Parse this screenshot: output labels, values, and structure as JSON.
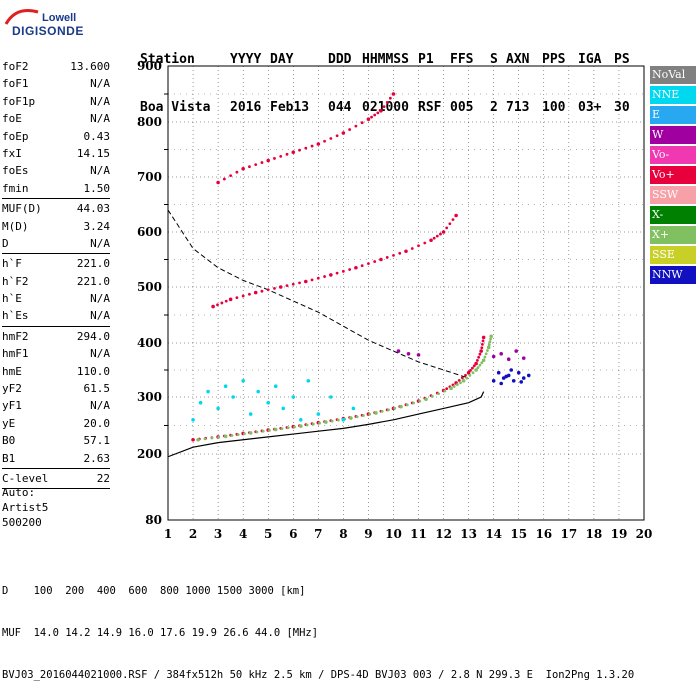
{
  "logo": {
    "line1": "Lowell",
    "line2": "DIGISONDE"
  },
  "header": {
    "labels": [
      "Station",
      "YYYY",
      "DAY",
      "DDD",
      "HHMMSS",
      "P1",
      "FFS",
      "S",
      "AXN",
      "PPS",
      "IGA",
      "PS"
    ],
    "values": [
      "Boa Vista",
      "2016",
      "Feb13",
      "044",
      "021000",
      "RSF",
      "005",
      "2",
      "713",
      "100",
      "03+",
      "30"
    ]
  },
  "params": [
    {
      "k": "foF2",
      "v": "13.600"
    },
    {
      "k": "foF1",
      "v": "N/A"
    },
    {
      "k": "foF1p",
      "v": "N/A"
    },
    {
      "k": "foE",
      "v": "N/A"
    },
    {
      "k": "foEp",
      "v": "0.43"
    },
    {
      "k": "fxI",
      "v": "14.15"
    },
    {
      "k": "foEs",
      "v": "N/A"
    },
    {
      "k": "fmin",
      "v": "1.50"
    },
    {
      "sep": true
    },
    {
      "k": "MUF(D)",
      "v": "44.03"
    },
    {
      "k": "M(D)",
      "v": "3.24"
    },
    {
      "k": "D",
      "v": "N/A"
    },
    {
      "sep": true
    },
    {
      "k": "h`F",
      "v": "221.0"
    },
    {
      "k": "h`F2",
      "v": "221.0"
    },
    {
      "k": "h`E",
      "v": "N/A"
    },
    {
      "k": "h`Es",
      "v": "N/A"
    },
    {
      "sep": true
    },
    {
      "k": "hmF2",
      "v": "294.0"
    },
    {
      "k": "hmF1",
      "v": "N/A"
    },
    {
      "k": "hmE",
      "v": "110.0"
    },
    {
      "k": "yF2",
      "v": "61.5"
    },
    {
      "k": "yF1",
      "v": "N/A"
    },
    {
      "k": "yE",
      "v": "20.0"
    },
    {
      "k": "B0",
      "v": "57.1"
    },
    {
      "k": "B1",
      "v": "2.63"
    },
    {
      "sep": true
    },
    {
      "k": "C-level",
      "v": "22"
    },
    {
      "sep": true
    }
  ],
  "auto": [
    "Auto:",
    "Artist5",
    "500200"
  ],
  "legend": [
    {
      "name": "NoVal",
      "color": "#808080"
    },
    {
      "name": "NNE",
      "color": "#00d8f0"
    },
    {
      "name": "E",
      "color": "#28a8f0"
    },
    {
      "name": "W",
      "color": "#a000a0"
    },
    {
      "name": "Vo-",
      "color": "#f038b0"
    },
    {
      "name": "Vo+",
      "color": "#e8003c"
    },
    {
      "name": "SSW",
      "color": "#f8a0a8"
    },
    {
      "name": "X-",
      "color": "#008000"
    },
    {
      "name": "X+",
      "color": "#80c060"
    },
    {
      "name": "SSE",
      "color": "#c8d028"
    },
    {
      "name": "NNW",
      "color": "#1010c0"
    }
  ],
  "chart_data": {
    "type": "scatter",
    "x_ticks": [
      "1",
      "2",
      "3",
      "4",
      "5",
      "6",
      "7",
      "8",
      "9",
      "10",
      "11",
      "12",
      "13",
      "14",
      "15",
      "16",
      "17",
      "18",
      "19",
      "20"
    ],
    "y_ticks": [
      "80",
      "200",
      "300",
      "400",
      "500",
      "600",
      "700",
      "800",
      "900"
    ],
    "xlim": [
      1,
      20
    ],
    "ylim": [
      80,
      900
    ],
    "grid": true,
    "legend_position": "right",
    "series": [
      {
        "name": "Vo+",
        "color": "#e8003c",
        "points": [
          [
            2.0,
            225
          ],
          [
            3.0,
            230
          ],
          [
            4.0,
            236
          ],
          [
            5.0,
            242
          ],
          [
            6.0,
            248
          ],
          [
            7.0,
            255
          ],
          [
            8.0,
            262
          ],
          [
            9.0,
            270
          ],
          [
            10.0,
            280
          ],
          [
            11.0,
            293
          ],
          [
            12.0,
            312
          ],
          [
            12.5,
            326
          ],
          [
            13.0,
            345
          ],
          [
            13.3,
            362
          ],
          [
            13.5,
            385
          ],
          [
            13.6,
            410
          ]
        ]
      },
      {
        "name": "X+",
        "color": "#80c060",
        "points": [
          [
            2.2,
            225
          ],
          [
            3.3,
            231
          ],
          [
            4.3,
            237
          ],
          [
            5.3,
            243
          ],
          [
            6.3,
            249
          ],
          [
            7.3,
            256
          ],
          [
            8.3,
            263
          ],
          [
            9.3,
            272
          ],
          [
            10.3,
            283
          ],
          [
            11.3,
            296
          ],
          [
            12.3,
            316
          ],
          [
            12.8,
            330
          ],
          [
            13.3,
            350
          ],
          [
            13.6,
            368
          ],
          [
            13.8,
            392
          ],
          [
            13.9,
            412
          ]
        ]
      },
      {
        "name": "Vo+",
        "color": "#e8003c",
        "points": [
          [
            2.8,
            465
          ],
          [
            3.5,
            478
          ],
          [
            4.5,
            490
          ],
          [
            5.5,
            500
          ],
          [
            6.5,
            510
          ],
          [
            7.5,
            522
          ],
          [
            8.5,
            535
          ],
          [
            9.5,
            550
          ],
          [
            10.5,
            565
          ],
          [
            11.5,
            585
          ],
          [
            12.0,
            600
          ],
          [
            12.5,
            630
          ]
        ]
      },
      {
        "name": "Vo+",
        "color": "#e8003c",
        "points": [
          [
            3.0,
            690
          ],
          [
            4.0,
            715
          ],
          [
            5.0,
            730
          ],
          [
            6.0,
            745
          ],
          [
            7.0,
            760
          ],
          [
            8.0,
            780
          ],
          [
            9.0,
            805
          ],
          [
            9.5,
            820
          ],
          [
            10.0,
            850
          ]
        ]
      },
      {
        "name": "NNW",
        "color": "#1010c0",
        "points": [
          [
            14.0,
            330
          ],
          [
            14.2,
            345
          ],
          [
            14.4,
            335
          ],
          [
            14.6,
            340
          ],
          [
            14.8,
            330
          ],
          [
            15.0,
            345
          ],
          [
            15.2,
            335
          ],
          [
            15.4,
            340
          ],
          [
            14.3,
            325
          ],
          [
            14.7,
            350
          ],
          [
            15.1,
            328
          ],
          [
            14.5,
            338
          ]
        ]
      },
      {
        "name": "NNE",
        "color": "#00d8f0",
        "points": [
          [
            2.0,
            260
          ],
          [
            2.3,
            290
          ],
          [
            2.6,
            310
          ],
          [
            3.0,
            280
          ],
          [
            3.3,
            320
          ],
          [
            3.6,
            300
          ],
          [
            4.0,
            330
          ],
          [
            4.3,
            270
          ],
          [
            4.6,
            310
          ],
          [
            5.0,
            290
          ],
          [
            5.3,
            320
          ],
          [
            5.6,
            280
          ],
          [
            6.0,
            300
          ],
          [
            6.3,
            260
          ],
          [
            6.6,
            330
          ],
          [
            7.0,
            270
          ],
          [
            7.5,
            300
          ],
          [
            8.0,
            260
          ],
          [
            8.4,
            280
          ]
        ]
      },
      {
        "name": "W",
        "color": "#a000a0",
        "points": [
          [
            14.0,
            375
          ],
          [
            14.3,
            380
          ],
          [
            14.6,
            370
          ],
          [
            14.9,
            385
          ],
          [
            15.2,
            372
          ],
          [
            10.2,
            385
          ],
          [
            10.6,
            380
          ],
          [
            11.0,
            378
          ]
        ]
      }
    ]
  },
  "footer": {
    "line1": "D    100  200  400  600  800 1000 1500 3000 [km]",
    "line2": "MUF  14.0 14.2 14.9 16.0 17.6 19.9 26.6 44.0 [MHz]",
    "line3": "BVJ03_2016044021000.RSF / 384fx512h 50 kHz 2.5 km / DPS-4D BVJ03 003 / 2.8 N 299.3 E  Ion2Png 1.3.20"
  }
}
